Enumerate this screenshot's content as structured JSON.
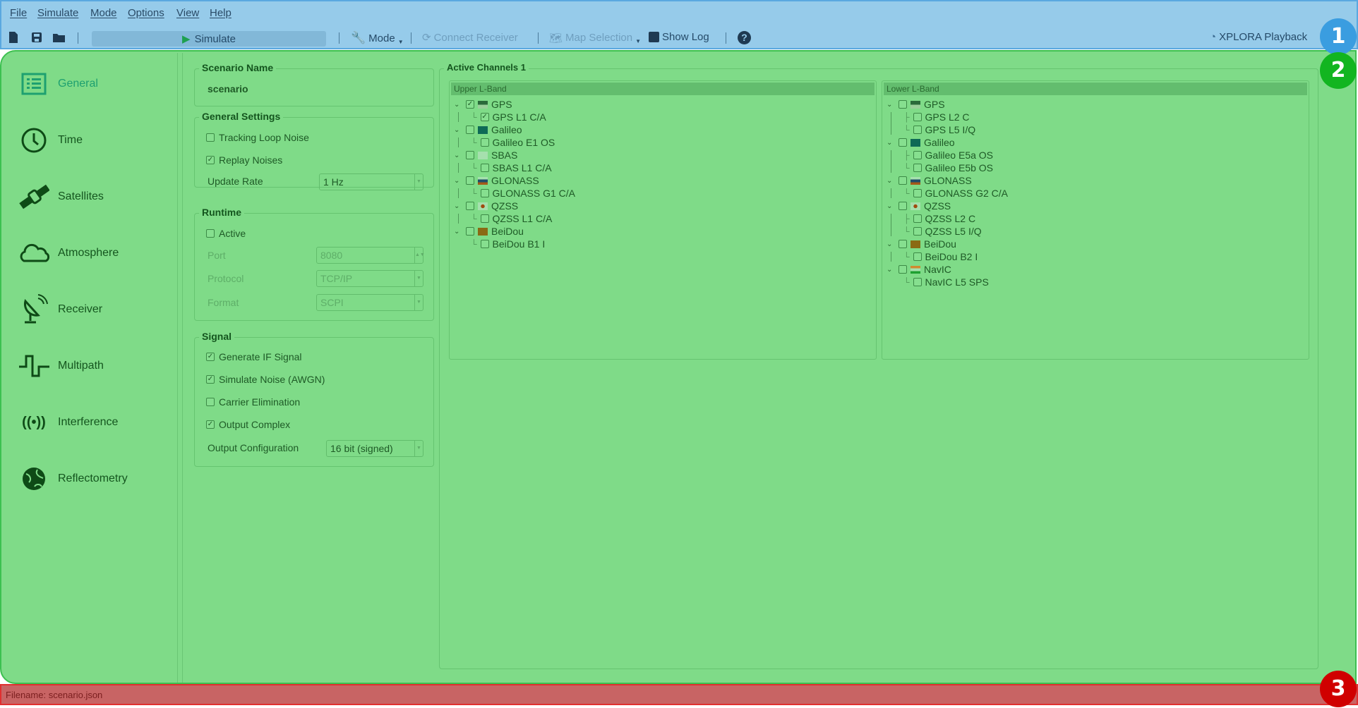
{
  "menu": [
    "File",
    "Simulate",
    "Mode",
    "Options",
    "View",
    "Help"
  ],
  "toolbar": {
    "simulate": "Simulate",
    "mode": "Mode",
    "connect": "Connect Receiver",
    "map": "Map Selection",
    "show_log": "Show Log",
    "playback": "XPLORA Playback"
  },
  "sidebar": {
    "items": [
      {
        "label": "General",
        "icon": "list-icon"
      },
      {
        "label": "Time",
        "icon": "clock-icon"
      },
      {
        "label": "Satellites",
        "icon": "satellite-icon"
      },
      {
        "label": "Atmosphere",
        "icon": "cloud-icon"
      },
      {
        "label": "Receiver",
        "icon": "satellite-dish-icon"
      },
      {
        "label": "Multipath",
        "icon": "square-wave-icon"
      },
      {
        "label": "Interference",
        "icon": "broadcast-icon"
      },
      {
        "label": "Reflectometry",
        "icon": "globe-icon"
      }
    ]
  },
  "scenario": {
    "title": "Scenario Name",
    "value": "scenario"
  },
  "general": {
    "title": "General Settings",
    "tracking_loop_noise": {
      "label": "Tracking Loop Noise",
      "checked": false
    },
    "replay_noises": {
      "label": "Replay Noises",
      "checked": true
    },
    "update_rate_label": "Update Rate",
    "update_rate": "1 Hz"
  },
  "runtime": {
    "title": "Runtime",
    "active": {
      "label": "Active",
      "checked": false
    },
    "port_label": "Port",
    "port": "8080",
    "protocol_label": "Protocol",
    "protocol": "TCP/IP",
    "format_label": "Format",
    "format": "SCPI"
  },
  "signal": {
    "title": "Signal",
    "generate_if": {
      "label": "Generate IF Signal",
      "checked": true
    },
    "simulate_noise": {
      "label": "Simulate Noise (AWGN)",
      "checked": true
    },
    "carrier_elim": {
      "label": "Carrier Elimination",
      "checked": false
    },
    "output_complex": {
      "label": "Output Complex",
      "checked": true
    },
    "output_config_label": "Output Configuration",
    "output_config": "16 bit (signed)"
  },
  "channels": {
    "title": "Active Channels 1",
    "upper": {
      "title": "Upper L-Band",
      "systems": [
        {
          "name": "GPS",
          "checked": true,
          "flag": "us",
          "signals": [
            {
              "name": "GPS L1 C/A",
              "checked": true
            }
          ]
        },
        {
          "name": "Galileo",
          "checked": false,
          "flag": "eu",
          "signals": [
            {
              "name": "Galileo E1 OS",
              "checked": false
            }
          ]
        },
        {
          "name": "SBAS",
          "checked": false,
          "flag": "sbas",
          "signals": [
            {
              "name": "SBAS L1 C/A",
              "checked": false
            }
          ]
        },
        {
          "name": "GLONASS",
          "checked": false,
          "flag": "ru",
          "signals": [
            {
              "name": "GLONASS G1 C/A",
              "checked": false
            }
          ]
        },
        {
          "name": "QZSS",
          "checked": false,
          "flag": "jp",
          "signals": [
            {
              "name": "QZSS L1 C/A",
              "checked": false
            }
          ]
        },
        {
          "name": "BeiDou",
          "checked": false,
          "flag": "cn",
          "signals": [
            {
              "name": "BeiDou B1 I",
              "checked": false
            }
          ]
        }
      ]
    },
    "lower": {
      "title": "Lower L-Band",
      "systems": [
        {
          "name": "GPS",
          "checked": false,
          "flag": "us",
          "signals": [
            {
              "name": "GPS L2 C",
              "checked": false
            },
            {
              "name": "GPS L5 I/Q",
              "checked": false
            }
          ]
        },
        {
          "name": "Galileo",
          "checked": false,
          "flag": "eu",
          "signals": [
            {
              "name": "Galileo E5a OS",
              "checked": false
            },
            {
              "name": "Galileo E5b OS",
              "checked": false
            }
          ]
        },
        {
          "name": "GLONASS",
          "checked": false,
          "flag": "ru",
          "signals": [
            {
              "name": "GLONASS G2 C/A",
              "checked": false
            }
          ]
        },
        {
          "name": "QZSS",
          "checked": false,
          "flag": "jp",
          "signals": [
            {
              "name": "QZSS L2 C",
              "checked": false
            },
            {
              "name": "QZSS L5 I/Q",
              "checked": false
            }
          ]
        },
        {
          "name": "BeiDou",
          "checked": false,
          "flag": "cn",
          "signals": [
            {
              "name": "BeiDou B2 I",
              "checked": false
            }
          ]
        },
        {
          "name": "NavIC",
          "checked": false,
          "flag": "in",
          "signals": [
            {
              "name": "NavIC L5 SPS",
              "checked": false
            }
          ]
        }
      ]
    }
  },
  "status": {
    "filename": "Filename: scenario.json"
  },
  "badges": [
    "1",
    "2",
    "3"
  ],
  "colors": {
    "toolbar_overlay": "#96cbea",
    "main_overlay": "#7fdb88",
    "status_overlay": "#c86464",
    "badge1": "#3a9de0",
    "badge2": "#12b520",
    "badge3": "#d00000"
  }
}
